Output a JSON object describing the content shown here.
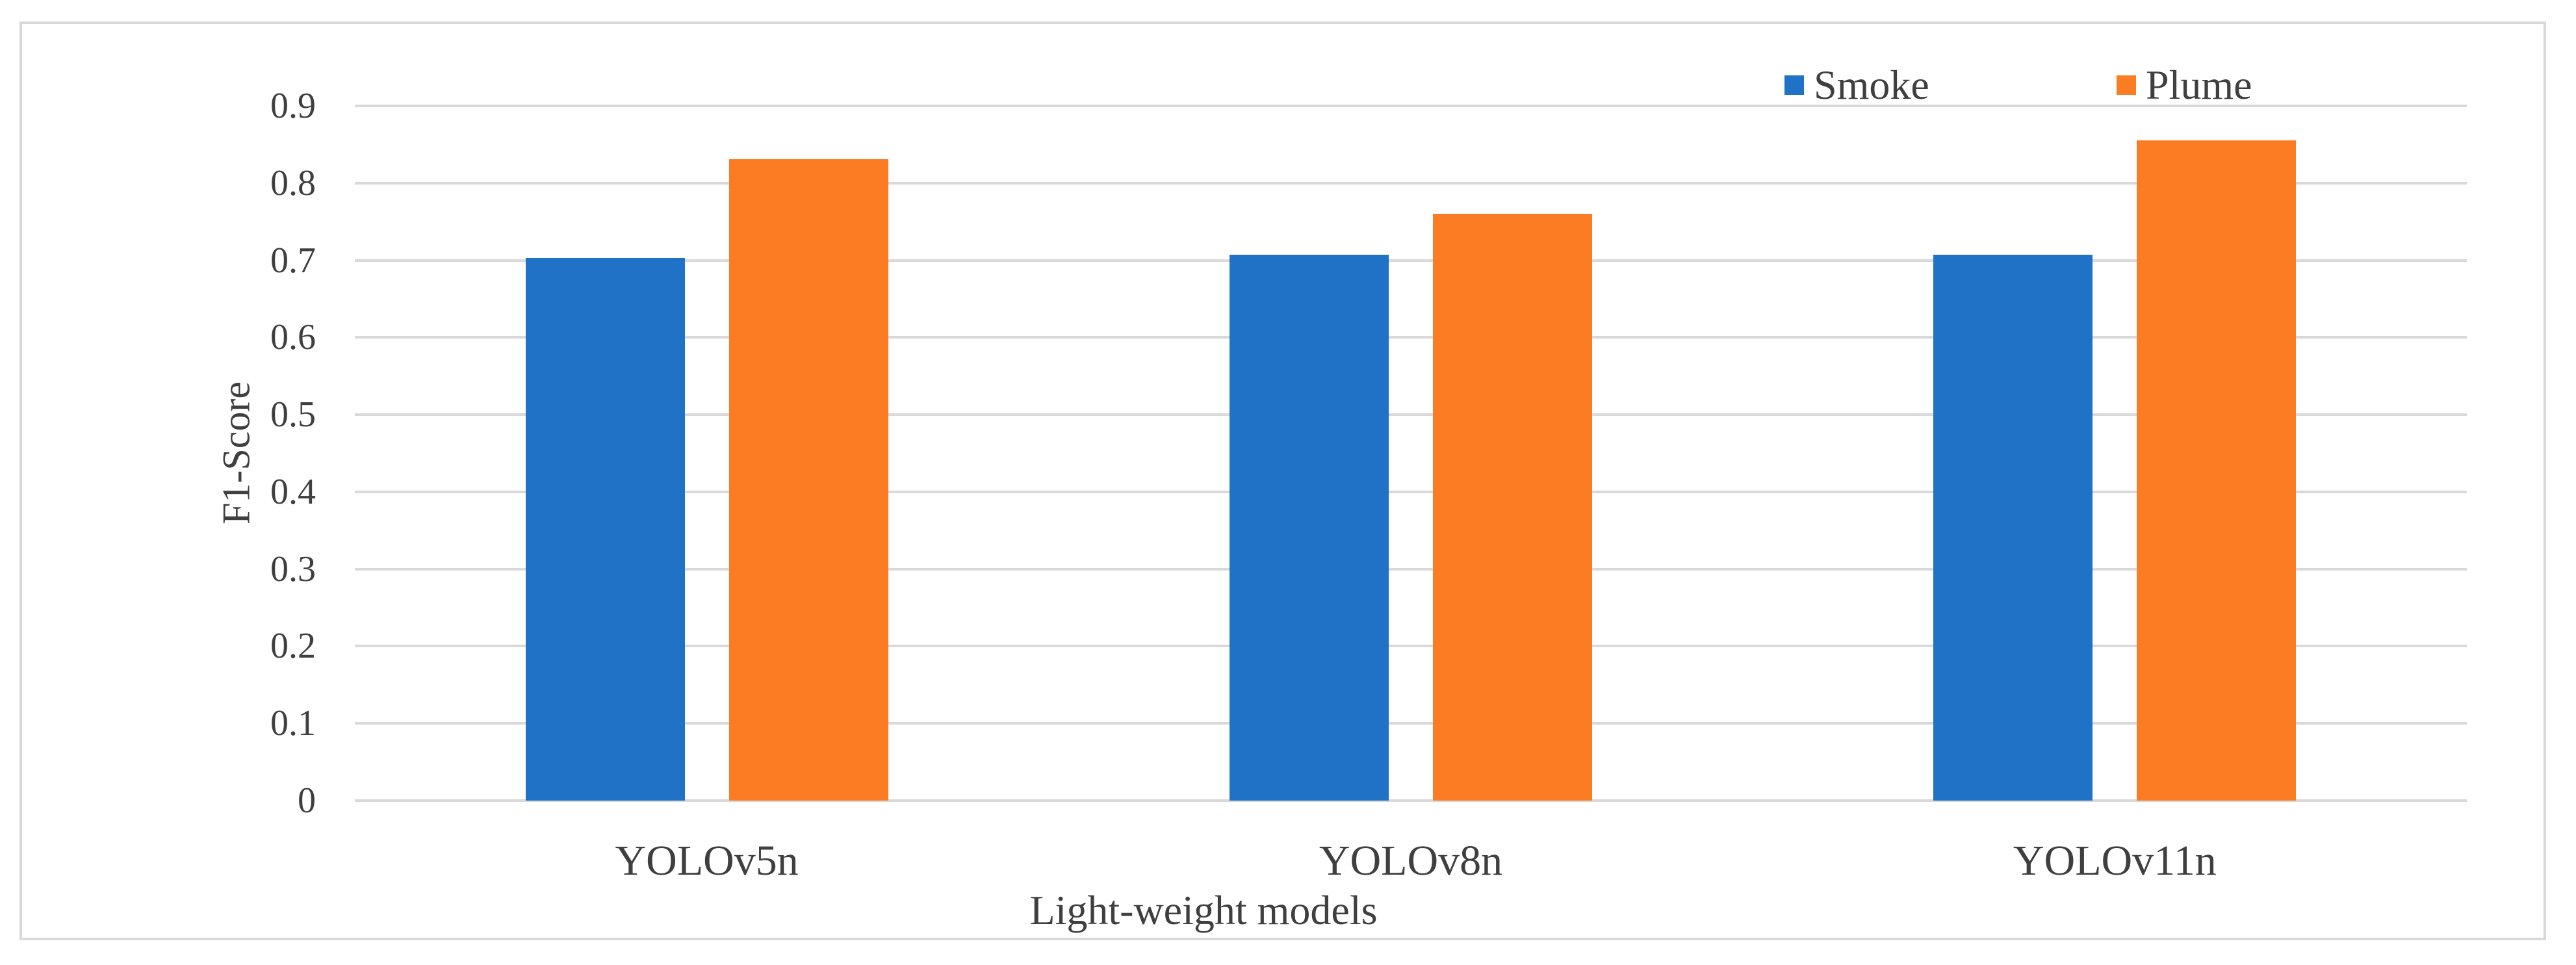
{
  "figure": {
    "background": "#ffffff",
    "border_color": "#d9d9d9"
  },
  "chart_data": {
    "type": "bar",
    "title": "",
    "xlabel": "Light-weight models",
    "ylabel": "F1-Score",
    "categories": [
      "YOLOv5n",
      "YOLOv8n",
      "YOLOv11n"
    ],
    "series": [
      {
        "name": "Smoke",
        "color": "#1f72c6",
        "values": [
          0.703,
          0.707,
          0.707
        ]
      },
      {
        "name": "Plume",
        "color": "#fc7c24",
        "values": [
          0.831,
          0.76,
          0.855
        ]
      }
    ],
    "ylim": [
      0,
      0.9
    ],
    "ytick_step": 0.1,
    "ytick_labels": [
      "0",
      "0.1",
      "0.2",
      "0.3",
      "0.4",
      "0.5",
      "0.6",
      "0.7",
      "0.8",
      "0.9"
    ],
    "grid": true,
    "gridline_color": "#d9d9d9",
    "text_color": "#3f3f3f",
    "legend_position": "top-right"
  }
}
